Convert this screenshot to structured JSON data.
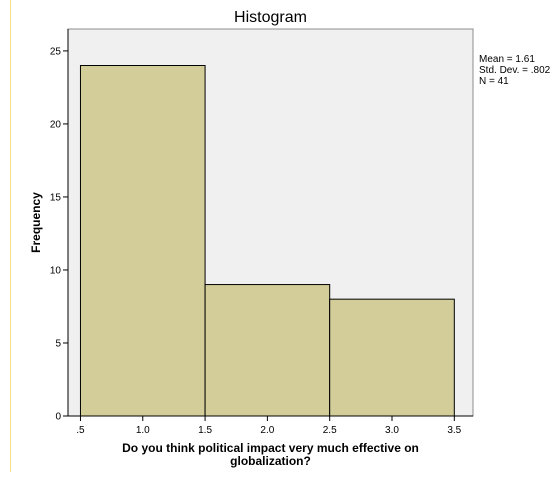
{
  "chart_data": {
    "type": "bar",
    "title": "Histogram",
    "xlabel_lines": [
      "Do you think political impact very much effective on",
      "globalization?"
    ],
    "ylabel": "Frequency",
    "bins": [
      {
        "start": 0.5,
        "end": 1.5,
        "value": 24
      },
      {
        "start": 1.5,
        "end": 2.5,
        "value": 9
      },
      {
        "start": 2.5,
        "end": 3.5,
        "value": 8
      }
    ],
    "xticks": [
      {
        "value": 0.5,
        "label": ".5"
      },
      {
        "value": 1.0,
        "label": "1.0"
      },
      {
        "value": 1.5,
        "label": "1.5"
      },
      {
        "value": 2.0,
        "label": "2.0"
      },
      {
        "value": 2.5,
        "label": "2.5"
      },
      {
        "value": 3.0,
        "label": "3.0"
      },
      {
        "value": 3.5,
        "label": "3.5"
      }
    ],
    "yticks": [
      0,
      5,
      10,
      15,
      20,
      25
    ],
    "xlim": [
      0.4,
      3.65
    ],
    "ylim": [
      0,
      26.5
    ],
    "stats": [
      "Mean = 1.61",
      "Std. Dev. = .802",
      "N = 41"
    ],
    "colors": {
      "bar_fill": "#d3ce99",
      "bar_stroke": "#000000",
      "plot_bg": "#f0f0f0",
      "axis": "#000000"
    },
    "grid": false,
    "legend": "none"
  }
}
